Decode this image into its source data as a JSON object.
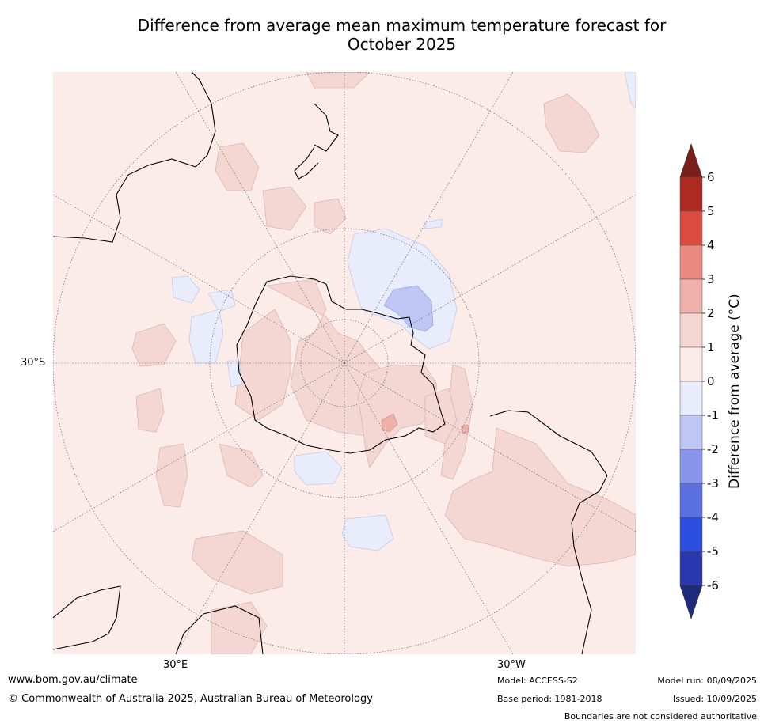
{
  "title": "Difference from average mean maximum temperature forecast for October 2025",
  "title_lines": [
    "Difference from average mean maximum temperature forecast for",
    "October 2025"
  ],
  "map": {
    "projection": "south-polar-stereographic",
    "graticule_labels": {
      "lat": "30°S",
      "lon_left": "30°E",
      "lon_right": "30°W"
    }
  },
  "colorbar": {
    "title": "Difference from average (°C)",
    "ticks": [
      "6",
      "5",
      "4",
      "3",
      "2",
      "1",
      "0",
      "-1",
      "-2",
      "-3",
      "-4",
      "-5",
      "-6"
    ],
    "bands": [
      {
        "range": "> 6",
        "color": "#7b1f1b"
      },
      {
        "range": "5 to 6",
        "color": "#ad2a22"
      },
      {
        "range": "4 to 5",
        "color": "#dc4b40"
      },
      {
        "range": "3 to 4",
        "color": "#e98a80"
      },
      {
        "range": "2 to 3",
        "color": "#eeb0a8"
      },
      {
        "range": "1 to 2",
        "color": "#f4d6d3"
      },
      {
        "range": "0 to 1",
        "color": "#fbecea"
      },
      {
        "range": "-1 to 0",
        "color": "#e8ecfb"
      },
      {
        "range": "-2 to -1",
        "color": "#bdc6f4"
      },
      {
        "range": "-3 to -2",
        "color": "#8795ec"
      },
      {
        "range": "-4 to -3",
        "color": "#5a6fe0"
      },
      {
        "range": "-5 to -4",
        "color": "#2d4fe0"
      },
      {
        "range": "-6 to -5",
        "color": "#2939ad"
      },
      {
        "range": "< -6",
        "color": "#1f2a7b"
      }
    ]
  },
  "footer": {
    "website": "www.bom.gov.au/climate",
    "copyright": "© Commonwealth of Australia 2025, Australian Bureau of Meteorology",
    "model": "Model: ACCESS-S2",
    "base_period": "Base period: 1981-2018",
    "model_run": "Model run: 08/09/2025",
    "issued": "Issued: 10/09/2025",
    "disclaimer": "Boundaries are not considered authoritative"
  }
}
